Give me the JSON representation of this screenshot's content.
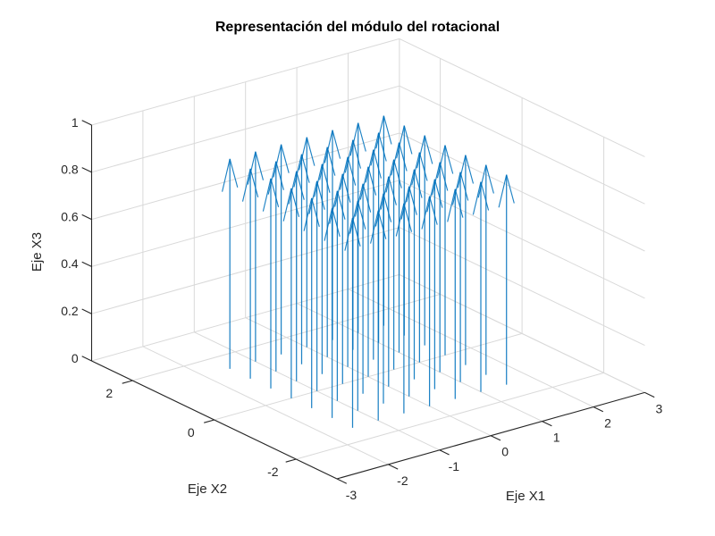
{
  "title": "Representación del módulo del rotacional",
  "chart_data": {
    "type": "quiver3d",
    "title": "Representación del módulo del rotacional",
    "xlabel": "Eje X1",
    "ylabel": "Eje X2",
    "zlabel": "Eje X3",
    "xlim": [
      -3,
      3
    ],
    "ylim": [
      -3,
      3
    ],
    "zlim": [
      0,
      1
    ],
    "x_ticks": [
      -3,
      -2,
      -1,
      0,
      1,
      2,
      3
    ],
    "y_ticks": [
      2,
      0,
      -2
    ],
    "z_ticks": [
      0,
      0.2,
      0.4,
      0.6,
      0.8,
      1
    ],
    "grid": true,
    "legend": "none",
    "colors": {
      "arrow": "#0072BD",
      "axis": "#262626",
      "grid": "#d9d9d9",
      "background": "#ffffff",
      "title": "#000000"
    },
    "vector_field": {
      "description": "uniform vertical arrows (constant curl modulus) on a square grid",
      "x_start": -1.5,
      "x_end": 1.5,
      "y_start": -1.5,
      "y_end": 1.5,
      "step": 0.5,
      "grid_points": 49,
      "direction": [
        0,
        0,
        1
      ],
      "tip_z": 0.89,
      "head_drop_z": 0.13,
      "head_half_width_x": 0.15
    }
  }
}
